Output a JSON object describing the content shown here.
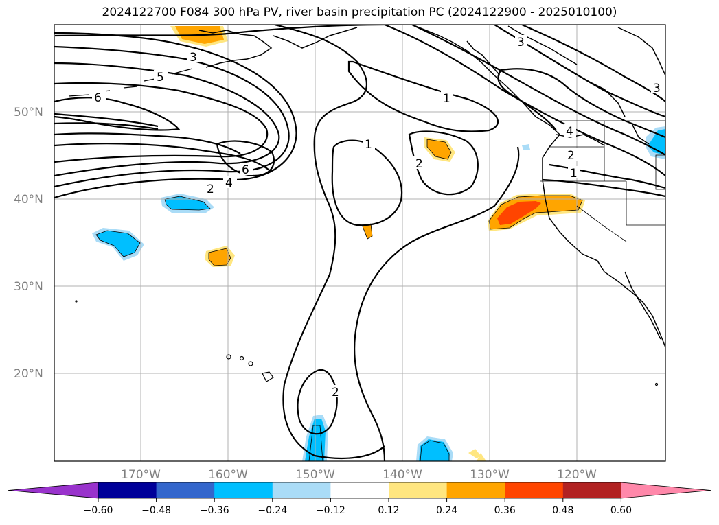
{
  "title": "2024122700 F084 300 hPa PV, river basin precipitation PC (2024122900 - 2025010100)",
  "map": {
    "lon_labels": [
      "170°W",
      "160°W",
      "150°W",
      "140°W",
      "130°W",
      "120°W"
    ],
    "lat_labels": [
      "50°N",
      "40°N",
      "30°N",
      "20°N"
    ],
    "contour_labels": [
      "3",
      "5",
      "6",
      "6",
      "4",
      "2",
      "1",
      "1",
      "2",
      "3",
      "3",
      "4",
      "2",
      "1",
      "2"
    ]
  },
  "colorbar": {
    "colors": [
      "#9933cc",
      "#000099",
      "#3366cc",
      "#00bfff",
      "#aadcf7",
      "#ffffff",
      "#ffe680",
      "#ffa500",
      "#ff4500",
      "#b22222",
      "#ff88aa"
    ],
    "ticks": [
      "−0.60",
      "−0.48",
      "−0.36",
      "−0.24",
      "−0.12",
      "0.12",
      "0.24",
      "0.36",
      "0.48",
      "0.60"
    ]
  },
  "shading": {
    "positive_light": "#ffe680",
    "positive_mid": "#ffa500",
    "positive_high": "#ff4500",
    "negative_light": "#aadcf7",
    "negative_mid": "#00bfff"
  }
}
